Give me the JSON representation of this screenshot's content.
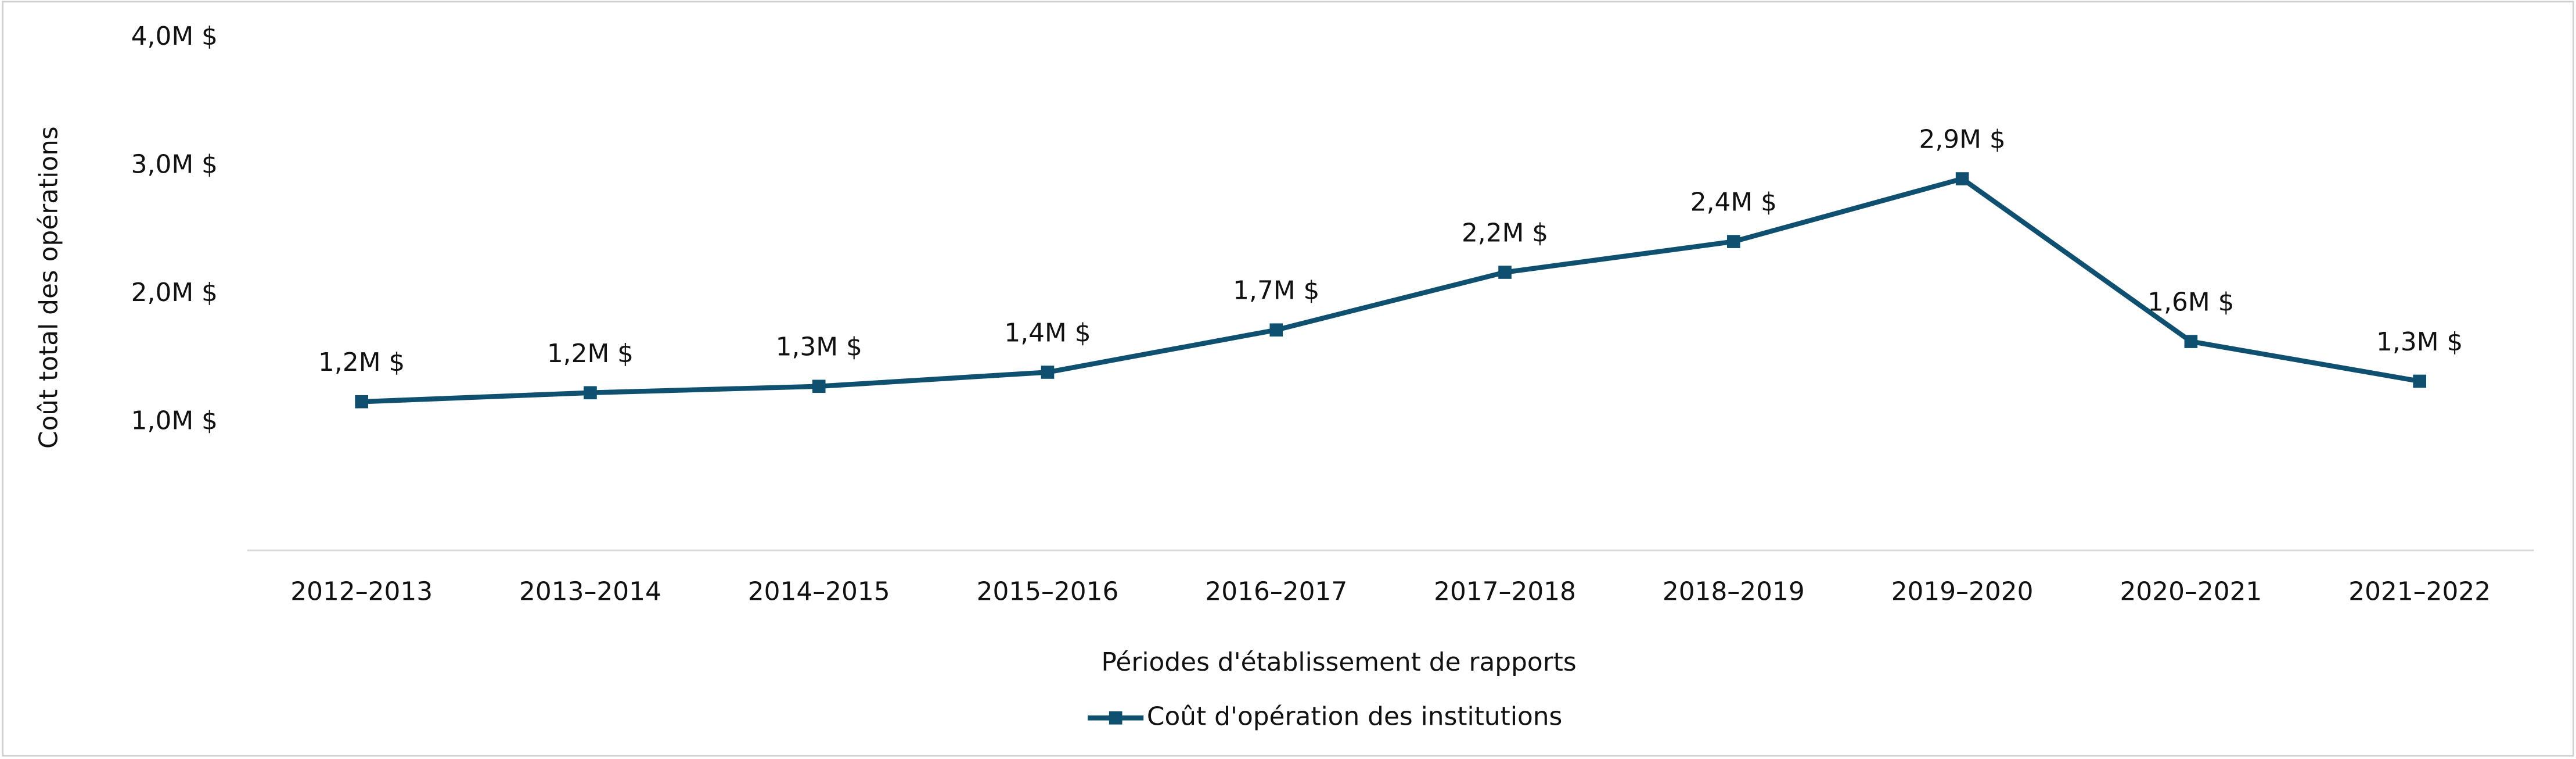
{
  "chart_data": {
    "type": "line",
    "x_label": "Périodes d'établissement de rapports",
    "y_label": "Coût total des opérations",
    "categories": [
      "2012–2013",
      "2013–2014",
      "2014–2015",
      "2015–2016",
      "2016–2017",
      "2017–2018",
      "2018–2019",
      "2019–2020",
      "2020–2021",
      "2021–2022"
    ],
    "series": [
      {
        "name": "Coût d'opération des institutions",
        "color": "#0f5070",
        "values": [
          1160000,
          1230000,
          1280000,
          1390000,
          1720000,
          2170000,
          2410000,
          2900000,
          1630000,
          1320000
        ],
        "value_labels": [
          "1,2M $",
          "1,2M $",
          "1,3M $",
          "1,4M $",
          "1,7M $",
          "2,2M $",
          "2,4M $",
          "2,9M $",
          "1,6M $",
          "1,3M $"
        ]
      }
    ],
    "ylim": [
      0,
      4000000
    ],
    "yticks": [
      {
        "value": 1000000,
        "label": "1,0M $"
      },
      {
        "value": 2000000,
        "label": "2,0M $"
      },
      {
        "value": 3000000,
        "label": "3,0M $"
      },
      {
        "value": 4000000,
        "label": "4,0M $"
      }
    ],
    "legend": "bottom"
  }
}
